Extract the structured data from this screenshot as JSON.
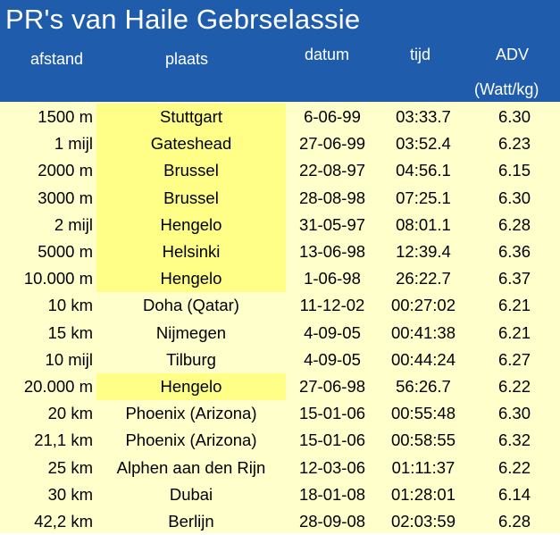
{
  "title": "PR's van Haile Gebrselassie",
  "columns": {
    "distance": "afstand",
    "place": "plaats",
    "date": "datum",
    "time": "tijd",
    "adv": "ADV",
    "adv_unit": "(Watt/kg)"
  },
  "colors": {
    "header_bg": "#1f5cab",
    "row_bg": "#ffffcc",
    "highlight_bg": "#ffff88"
  },
  "rows": [
    {
      "distance": "1500 m",
      "place": "Stuttgart",
      "date": "6-06-99",
      "time": "03:33.7",
      "adv": "6.30",
      "highlight": true
    },
    {
      "distance": "1 mijl",
      "place": "Gateshead",
      "date": "27-06-99",
      "time": "03:52.4",
      "adv": "6.23",
      "highlight": true
    },
    {
      "distance": "2000 m",
      "place": "Brussel",
      "date": "22-08-97",
      "time": "04:56.1",
      "adv": "6.15",
      "highlight": true
    },
    {
      "distance": "3000 m",
      "place": "Brussel",
      "date": "28-08-98",
      "time": "07:25.1",
      "adv": "6.30",
      "highlight": true
    },
    {
      "distance": "2 mijl",
      "place": "Hengelo",
      "date": "31-05-97",
      "time": "08:01.1",
      "adv": "6.28",
      "highlight": true
    },
    {
      "distance": "5000 m",
      "place": "Helsinki",
      "date": "13-06-98",
      "time": "12:39.4",
      "adv": "6.36",
      "highlight": true
    },
    {
      "distance": "10.000 m",
      "place": "Hengelo",
      "date": "1-06-98",
      "time": "26:22.7",
      "adv": "6.37",
      "highlight": true
    },
    {
      "distance": "10 km",
      "place": "Doha (Qatar)",
      "date": "11-12-02",
      "time": "00:27:02",
      "adv": "6.21",
      "highlight": false
    },
    {
      "distance": "15 km",
      "place": "Nijmegen",
      "date": "4-09-05",
      "time": "00:41:38",
      "adv": "6.21",
      "highlight": false
    },
    {
      "distance": "10 mijl",
      "place": "Tilburg",
      "date": "4-09-05",
      "time": "00:44:24",
      "adv": "6.27",
      "highlight": false
    },
    {
      "distance": "20.000 m",
      "place": "Hengelo",
      "date": "27-06-98",
      "time": "56:26.7",
      "adv": "6.22",
      "highlight": true
    },
    {
      "distance": "20 km",
      "place": "Phoenix (Arizona)",
      "date": "15-01-06",
      "time": "00:55:48",
      "adv": "6.30",
      "highlight": false
    },
    {
      "distance": "21,1 km",
      "place": "Phoenix (Arizona)",
      "date": "15-01-06",
      "time": "00:58:55",
      "adv": "6.32",
      "highlight": false
    },
    {
      "distance": "25 km",
      "place": "Alphen aan den Rijn",
      "date": "12-03-06",
      "time": "01:11:37",
      "adv": "6.22",
      "highlight": false
    },
    {
      "distance": "30 km",
      "place": "Dubai",
      "date": "18-01-08",
      "time": "01:28:01",
      "adv": "6.14",
      "highlight": false
    },
    {
      "distance": "42,2 km",
      "place": "Berlijn",
      "date": "28-09-08",
      "time": "02:03:59",
      "adv": "6.28",
      "highlight": false
    }
  ]
}
